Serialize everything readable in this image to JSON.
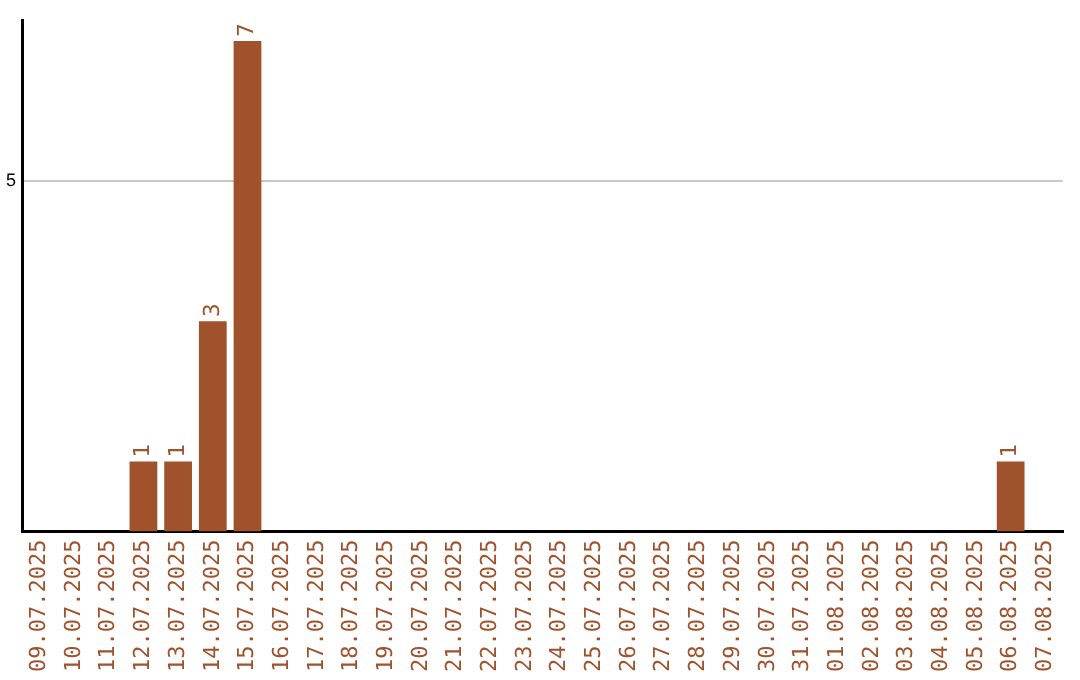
{
  "chart_data": {
    "type": "bar",
    "categories": [
      "09.07.2025",
      "10.07.2025",
      "11.07.2025",
      "12.07.2025",
      "13.07.2025",
      "14.07.2025",
      "15.07.2025",
      "16.07.2025",
      "17.07.2025",
      "18.07.2025",
      "19.07.2025",
      "20.07.2025",
      "21.07.2025",
      "22.07.2025",
      "23.07.2025",
      "24.07.2025",
      "25.07.2025",
      "26.07.2025",
      "27.07.2025",
      "28.07.2025",
      "29.07.2025",
      "30.07.2025",
      "31.07.2025",
      "01.08.2025",
      "02.08.2025",
      "03.08.2025",
      "04.08.2025",
      "05.08.2025",
      "06.08.2025",
      "07.08.2025"
    ],
    "values": [
      0,
      0,
      0,
      1,
      1,
      3,
      7,
      0,
      0,
      0,
      0,
      0,
      0,
      0,
      0,
      0,
      0,
      0,
      0,
      0,
      0,
      0,
      0,
      0,
      0,
      0,
      0,
      0,
      1,
      0
    ],
    "value_labels": [
      null,
      null,
      null,
      "1",
      "1",
      "3",
      "7",
      null,
      null,
      null,
      null,
      null,
      null,
      null,
      null,
      null,
      null,
      null,
      null,
      null,
      null,
      null,
      null,
      null,
      null,
      null,
      null,
      null,
      "1",
      null
    ],
    "color": "#a0522d",
    "ylim": [
      0,
      7.3
    ],
    "yticks": [
      5
    ],
    "grid": "y",
    "legend": false
  }
}
